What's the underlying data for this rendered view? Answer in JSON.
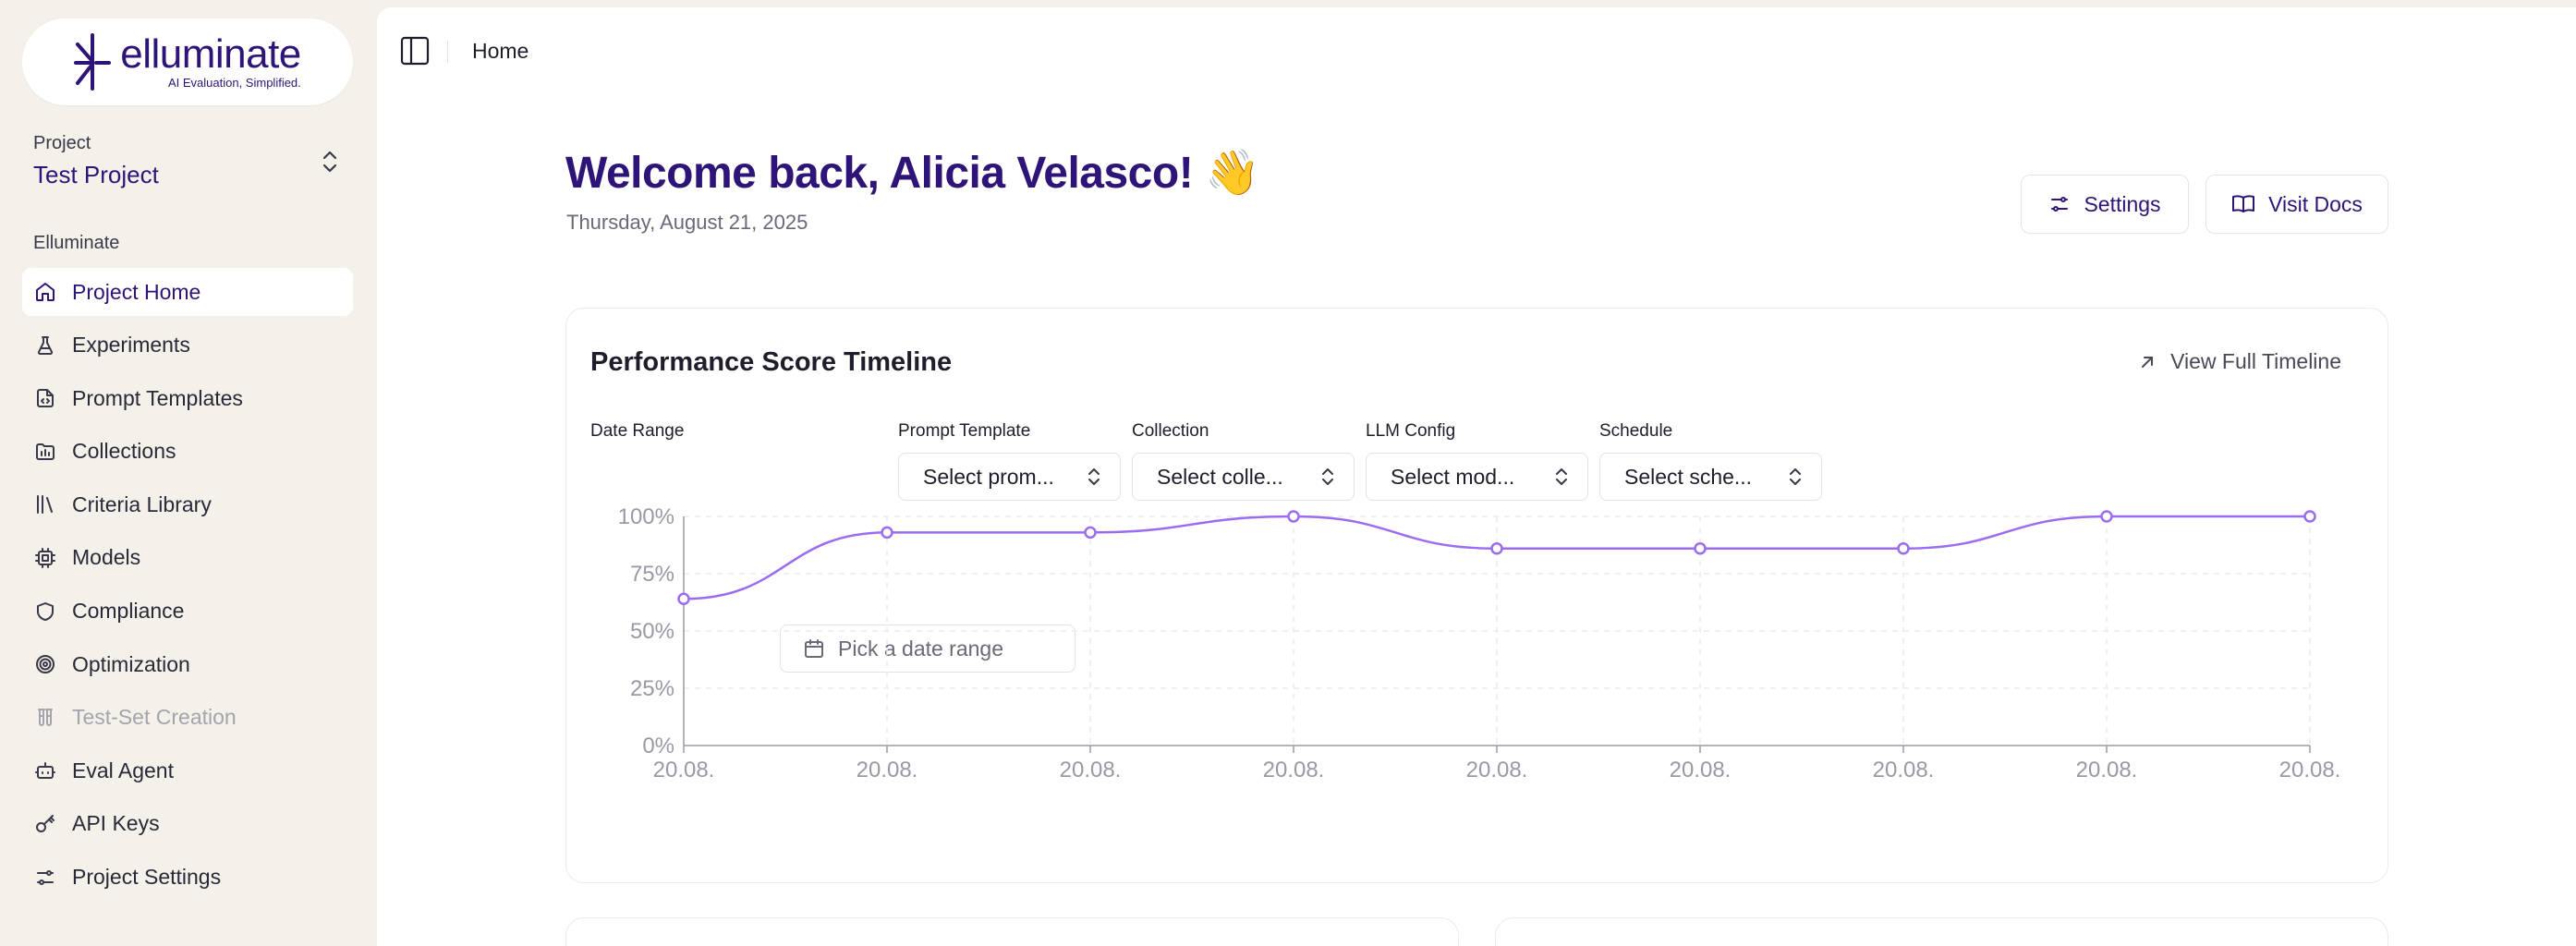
{
  "brand": {
    "name": "elluminate",
    "tagline": "AI Evaluation, Simplified.",
    "color": "#2e1478",
    "accent": "#9b6cf0"
  },
  "project": {
    "label": "Project",
    "name": "Test Project"
  },
  "sidebar": {
    "section_label": "Elluminate",
    "items": [
      {
        "label": "Project Home",
        "icon": "home-icon",
        "active": true
      },
      {
        "label": "Experiments",
        "icon": "flask-icon"
      },
      {
        "label": "Prompt Templates",
        "icon": "file-code-icon"
      },
      {
        "label": "Collections",
        "icon": "folder-icon"
      },
      {
        "label": "Criteria Library",
        "icon": "library-icon"
      },
      {
        "label": "Models",
        "icon": "cpu-icon"
      },
      {
        "label": "Compliance",
        "icon": "shield-icon"
      },
      {
        "label": "Optimization",
        "icon": "target-icon"
      },
      {
        "label": "Test-Set Creation",
        "icon": "test-tubes-icon",
        "disabled": true
      },
      {
        "label": "Eval Agent",
        "icon": "bot-icon"
      },
      {
        "label": "API Keys",
        "icon": "key-icon"
      },
      {
        "label": "Project Settings",
        "icon": "sliders-icon"
      }
    ]
  },
  "header": {
    "breadcrumb": "Home"
  },
  "welcome": {
    "title": "Welcome back, Alicia Velasco! 👋",
    "date": "Thursday, August 21, 2025"
  },
  "actions": {
    "settings_label": "Settings",
    "docs_label": "Visit Docs"
  },
  "timeline_card": {
    "title": "Performance Score Timeline",
    "view_link": "View Full Timeline",
    "filters": {
      "date_range": {
        "label": "Date Range",
        "placeholder": "Pick a date range"
      },
      "prompt_template": {
        "label": "Prompt Template",
        "value": "Select prom..."
      },
      "collection": {
        "label": "Collection",
        "value": "Select colle..."
      },
      "llm_config": {
        "label": "LLM Config",
        "value": "Select mod..."
      },
      "schedule": {
        "label": "Schedule",
        "value": "Select sche..."
      }
    }
  },
  "chart_data": {
    "type": "line",
    "x": [
      "20.08.",
      "20.08.",
      "20.08.",
      "20.08.",
      "20.08.",
      "20.08.",
      "20.08.",
      "20.08.",
      "20.08."
    ],
    "series": [
      {
        "values": [
          64,
          93,
          93,
          100,
          86,
          86,
          86,
          100,
          100
        ]
      }
    ],
    "yticks": [
      "0%",
      "25%",
      "50%",
      "75%",
      "100%"
    ],
    "ylim": [
      0,
      100
    ],
    "grid": true,
    "color": "#9b6cf0"
  }
}
